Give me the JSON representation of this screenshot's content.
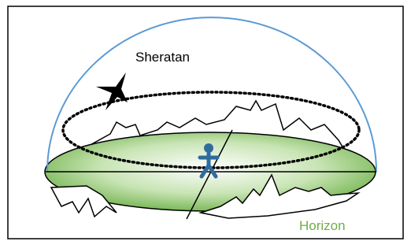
{
  "labels": {
    "star": "Sheratan",
    "horizon": "Horizon"
  }
}
